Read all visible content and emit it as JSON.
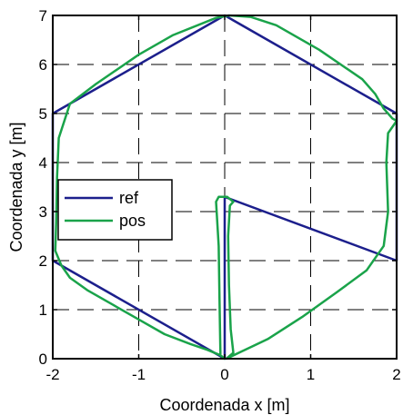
{
  "chart_data": {
    "type": "line",
    "title": "",
    "xlabel": "Coordenada x [m]",
    "ylabel": "Coordenada y [m]",
    "xlim": [
      -2,
      2
    ],
    "ylim": [
      0,
      7
    ],
    "xticks": [
      -2,
      -1,
      0,
      1,
      2
    ],
    "yticks": [
      0,
      1,
      2,
      3,
      4,
      5,
      6,
      7
    ],
    "xtick_labels": [
      "-2",
      "-1",
      "0",
      "1",
      "2"
    ],
    "ytick_labels": [
      "0",
      "1",
      "2",
      "3",
      "4",
      "5",
      "6",
      "7"
    ],
    "grid": true,
    "grid_style": "dashed",
    "legend_position": "center-left",
    "series": [
      {
        "name": "ref",
        "color": "#1c1f8c",
        "x": [
          0,
          0,
          2,
          2,
          0,
          -2,
          -2,
          0
        ],
        "y": [
          0,
          3.3,
          2,
          5,
          7,
          5,
          2,
          0
        ]
      },
      {
        "name": "pos",
        "color": "#1aa34a",
        "x": [
          -0.05,
          -0.06,
          -0.07,
          -0.1,
          -0.07,
          0.03,
          0.1,
          0.06,
          0.04,
          0.05,
          0.07,
          0.1,
          0.02,
          0.2,
          0.5,
          0.9,
          1.3,
          1.65,
          1.85,
          1.9,
          1.88,
          1.9,
          2.0,
          1.95,
          1.85,
          1.75,
          1.6,
          1.1,
          0.6,
          0.3,
          0.05,
          -0.1,
          -0.6,
          -1.0,
          -1.5,
          -1.8,
          -1.93,
          -1.95,
          -1.96,
          -1.97,
          -1.9,
          -1.8,
          -1.6,
          -1.3,
          -1.0,
          -0.7,
          -0.4,
          -0.2,
          -0.05,
          0.0
        ],
        "y": [
          0.1,
          1.2,
          2.3,
          3.2,
          3.3,
          3.3,
          3.2,
          3.12,
          2.5,
          1.5,
          0.6,
          0.12,
          0.0,
          0.15,
          0.4,
          0.85,
          1.35,
          1.8,
          2.3,
          3.0,
          4.0,
          4.6,
          4.85,
          4.9,
          5.1,
          5.4,
          5.7,
          6.3,
          6.8,
          6.97,
          7.0,
          6.95,
          6.6,
          6.2,
          5.6,
          5.2,
          4.5,
          3.7,
          2.8,
          2.2,
          1.9,
          1.65,
          1.4,
          1.1,
          0.8,
          0.5,
          0.3,
          0.18,
          0.07,
          0.0
        ]
      }
    ]
  }
}
